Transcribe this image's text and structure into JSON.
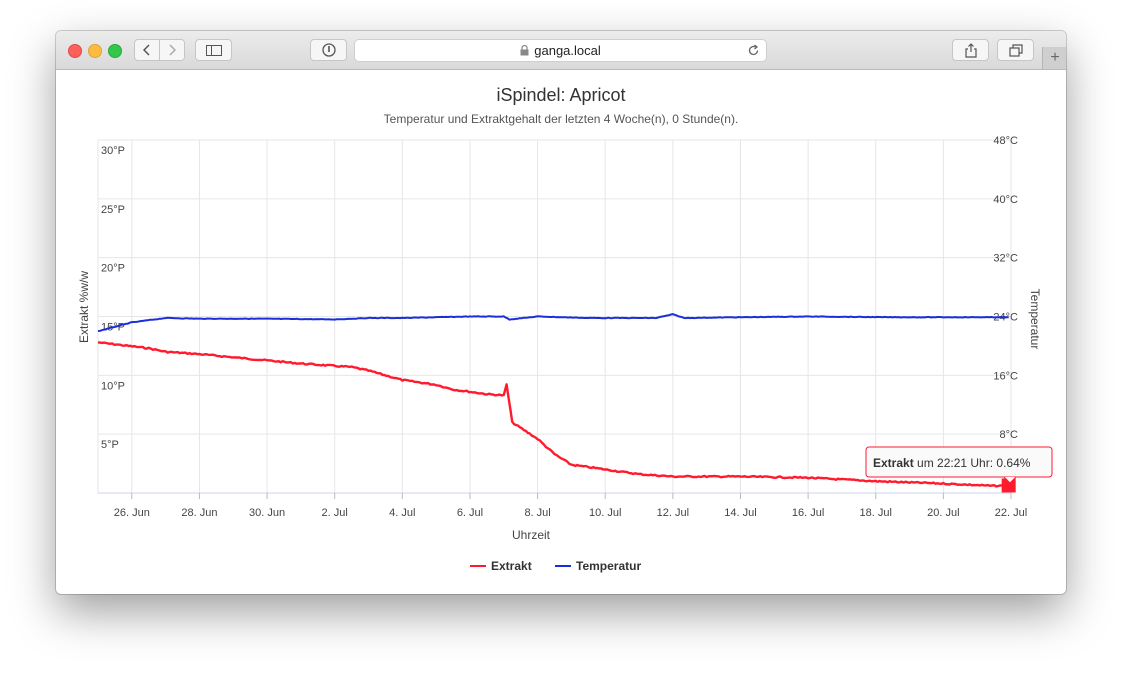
{
  "browser": {
    "url": "ganga.local",
    "colors": {
      "accent": "#ff3b30"
    }
  },
  "chart_data": {
    "type": "line",
    "title": "iSpindel: Apricot",
    "subtitle": "Temperatur und Extraktgehalt der letzten 4 Woche(n), 0 Stunde(n).",
    "xlabel": "Uhrzeit",
    "ylabel_left": "Extrakt %w/w",
    "ylabel_right": "Temperatur",
    "x_ticks": [
      "26. Jun",
      "28. Jun",
      "30. Jun",
      "2. Jul",
      "4. Jul",
      "6. Jul",
      "8. Jul",
      "10. Jul",
      "12. Jul",
      "14. Jul",
      "16. Jul",
      "18. Jul",
      "20. Jul",
      "22. Jul"
    ],
    "y_left_ticks": [
      "5°P",
      "10°P",
      "15°P",
      "20°P",
      "25°P",
      "30°P"
    ],
    "y_right_ticks": [
      "8°C",
      "16°C",
      "24°C",
      "32°C",
      "40°C",
      "48°C"
    ],
    "ylim_left": [
      0,
      30
    ],
    "ylim_right": [
      0,
      48
    ],
    "grid": true,
    "legend_position": "bottom",
    "series": [
      {
        "name": "Extrakt",
        "axis": "left",
        "color": "#ff1a2e",
        "x": [
          "2017-06-25 00:00",
          "2017-06-26 12:00",
          "2017-06-27 00:00",
          "2017-06-28 00:00",
          "2017-06-29 12:00",
          "2017-07-01 00:00",
          "2017-07-02 12:00",
          "2017-07-03 00:00",
          "2017-07-04 00:00",
          "2017-07-05 00:00",
          "2017-07-05 12:00",
          "2017-07-06 12:00",
          "2017-07-07 00:00",
          "2017-07-07 02:00",
          "2017-07-07 06:00",
          "2017-07-08 00:00",
          "2017-07-08 12:00",
          "2017-07-09 00:00",
          "2017-07-10 00:00",
          "2017-07-11 00:00",
          "2017-07-12 00:00",
          "2017-07-14 00:00",
          "2017-07-16 00:00",
          "2017-07-18 00:00",
          "2017-07-20 00:00",
          "2017-07-21 12:00",
          "2017-07-21 22:21"
        ],
        "values": [
          12.8,
          12.3,
          12.0,
          11.8,
          11.4,
          11.0,
          10.7,
          10.4,
          9.6,
          9.2,
          8.8,
          8.4,
          8.3,
          9.2,
          6.0,
          4.6,
          3.3,
          2.4,
          2.0,
          1.6,
          1.4,
          1.4,
          1.3,
          1.0,
          0.8,
          0.6,
          0.64
        ]
      },
      {
        "name": "Temperatur",
        "axis": "right",
        "color": "#1a2ed9",
        "x": [
          "2017-06-25 00:00",
          "2017-06-26 00:00",
          "2017-06-27 00:00",
          "2017-06-28 00:00",
          "2017-06-30 00:00",
          "2017-07-02 00:00",
          "2017-07-03 00:00",
          "2017-07-04 00:00",
          "2017-07-06 00:00",
          "2017-07-07 00:00",
          "2017-07-07 04:00",
          "2017-07-08 00:00",
          "2017-07-09 12:00",
          "2017-07-11 12:00",
          "2017-07-12 00:00",
          "2017-07-12 08:00",
          "2017-07-14 00:00",
          "2017-07-16 00:00",
          "2017-07-18 12:00",
          "2017-07-20 00:00",
          "2017-07-21 22:21"
        ],
        "values": [
          22.0,
          23.2,
          23.8,
          23.7,
          23.7,
          23.6,
          23.8,
          23.8,
          24.0,
          24.0,
          23.6,
          24.0,
          23.8,
          23.8,
          24.3,
          23.8,
          23.9,
          24.0,
          23.9,
          23.9,
          23.9
        ]
      }
    ],
    "tooltip": {
      "series_label": "Extrakt",
      "text": " um 22:21 Uhr: 0.64%"
    }
  }
}
